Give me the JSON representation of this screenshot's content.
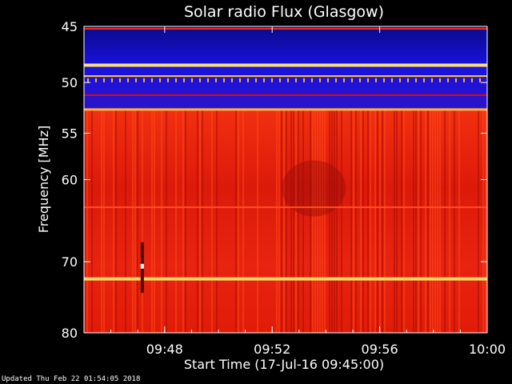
{
  "chart_data": {
    "type": "heatmap",
    "title": "Solar radio Flux (Glasgow)",
    "xlabel": "Start Time (17-Jul-16 09:45:00)",
    "ylabel": "Frequency [MHz]",
    "x_range_minutes": [
      "09:45",
      "10:00"
    ],
    "ylim": [
      45,
      80
    ],
    "y_scale": "log",
    "y_ticks": [
      45,
      50,
      55,
      60,
      70,
      80
    ],
    "y_tick_labels": [
      "45",
      "50",
      "55",
      "60",
      "70",
      "80"
    ],
    "x_ticks": [
      "09:48",
      "09:52",
      "09:56",
      "10:00"
    ],
    "colormap": [
      "#000000",
      "#1a00c8",
      "#c80000",
      "#ff3a00",
      "#ffd040",
      "#ffffff"
    ],
    "bands": [
      {
        "from_mhz": 45.0,
        "to_mhz": 52.5,
        "level": "low",
        "color": "#1a10d8"
      },
      {
        "from_mhz": 52.5,
        "to_mhz": 80.0,
        "level": "high",
        "color": "#e01808"
      }
    ],
    "interference_lines_mhz": [
      45.2,
      48.4,
      49.4,
      51.2,
      52.6,
      63.2,
      72.3
    ],
    "spike_events": [
      {
        "time": "09:47:10",
        "from_mhz": 67.5,
        "to_mhz": 74.2
      }
    ]
  },
  "footer": {
    "updated": "Updated Thu Feb 22 01:54:05 2018"
  }
}
